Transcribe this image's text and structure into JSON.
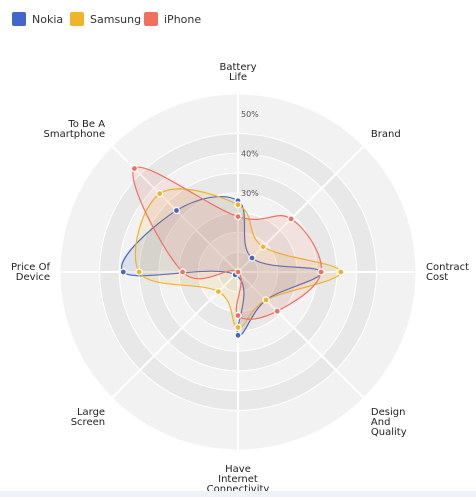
{
  "chart_data": {
    "type": "radar",
    "title": "",
    "axes": [
      "Battery Life",
      "Brand",
      "Contract Cost",
      "Design And Quality",
      "Have Internet Connectivity",
      "Large Screen",
      "Price Of Device",
      "To Be A Smartphone"
    ],
    "axis_label_lines": [
      [
        "Battery",
        "Life"
      ],
      [
        "Brand"
      ],
      [
        "Contract",
        "Cost"
      ],
      [
        "Design",
        "And",
        "Quality"
      ],
      [
        "Have",
        "Internet",
        "Connectivity"
      ],
      [
        "Large",
        "Screen"
      ],
      [
        "Price Of",
        "Device"
      ],
      [
        "To Be A",
        "Smartphone"
      ]
    ],
    "r_ticks": [
      "30%",
      "40%",
      "50%"
    ],
    "r_tick_values": [
      0.3,
      0.4,
      0.5
    ],
    "r_range": [
      0.1,
      0.55
    ],
    "series": [
      {
        "name": "Nokia",
        "color": "#4466c8",
        "values": [
          0.28,
          0.15,
          0.31,
          0.2,
          0.26,
          0.11,
          0.39,
          0.32
        ]
      },
      {
        "name": "Samsung",
        "color": "#f0b429",
        "values": [
          0.27,
          0.19,
          0.36,
          0.2,
          0.24,
          0.17,
          0.35,
          0.38
        ]
      },
      {
        "name": "iPhone",
        "color": "#f07060",
        "values": [
          0.24,
          0.29,
          0.31,
          0.24,
          0.21,
          0.1,
          0.24,
          0.47
        ]
      }
    ]
  }
}
